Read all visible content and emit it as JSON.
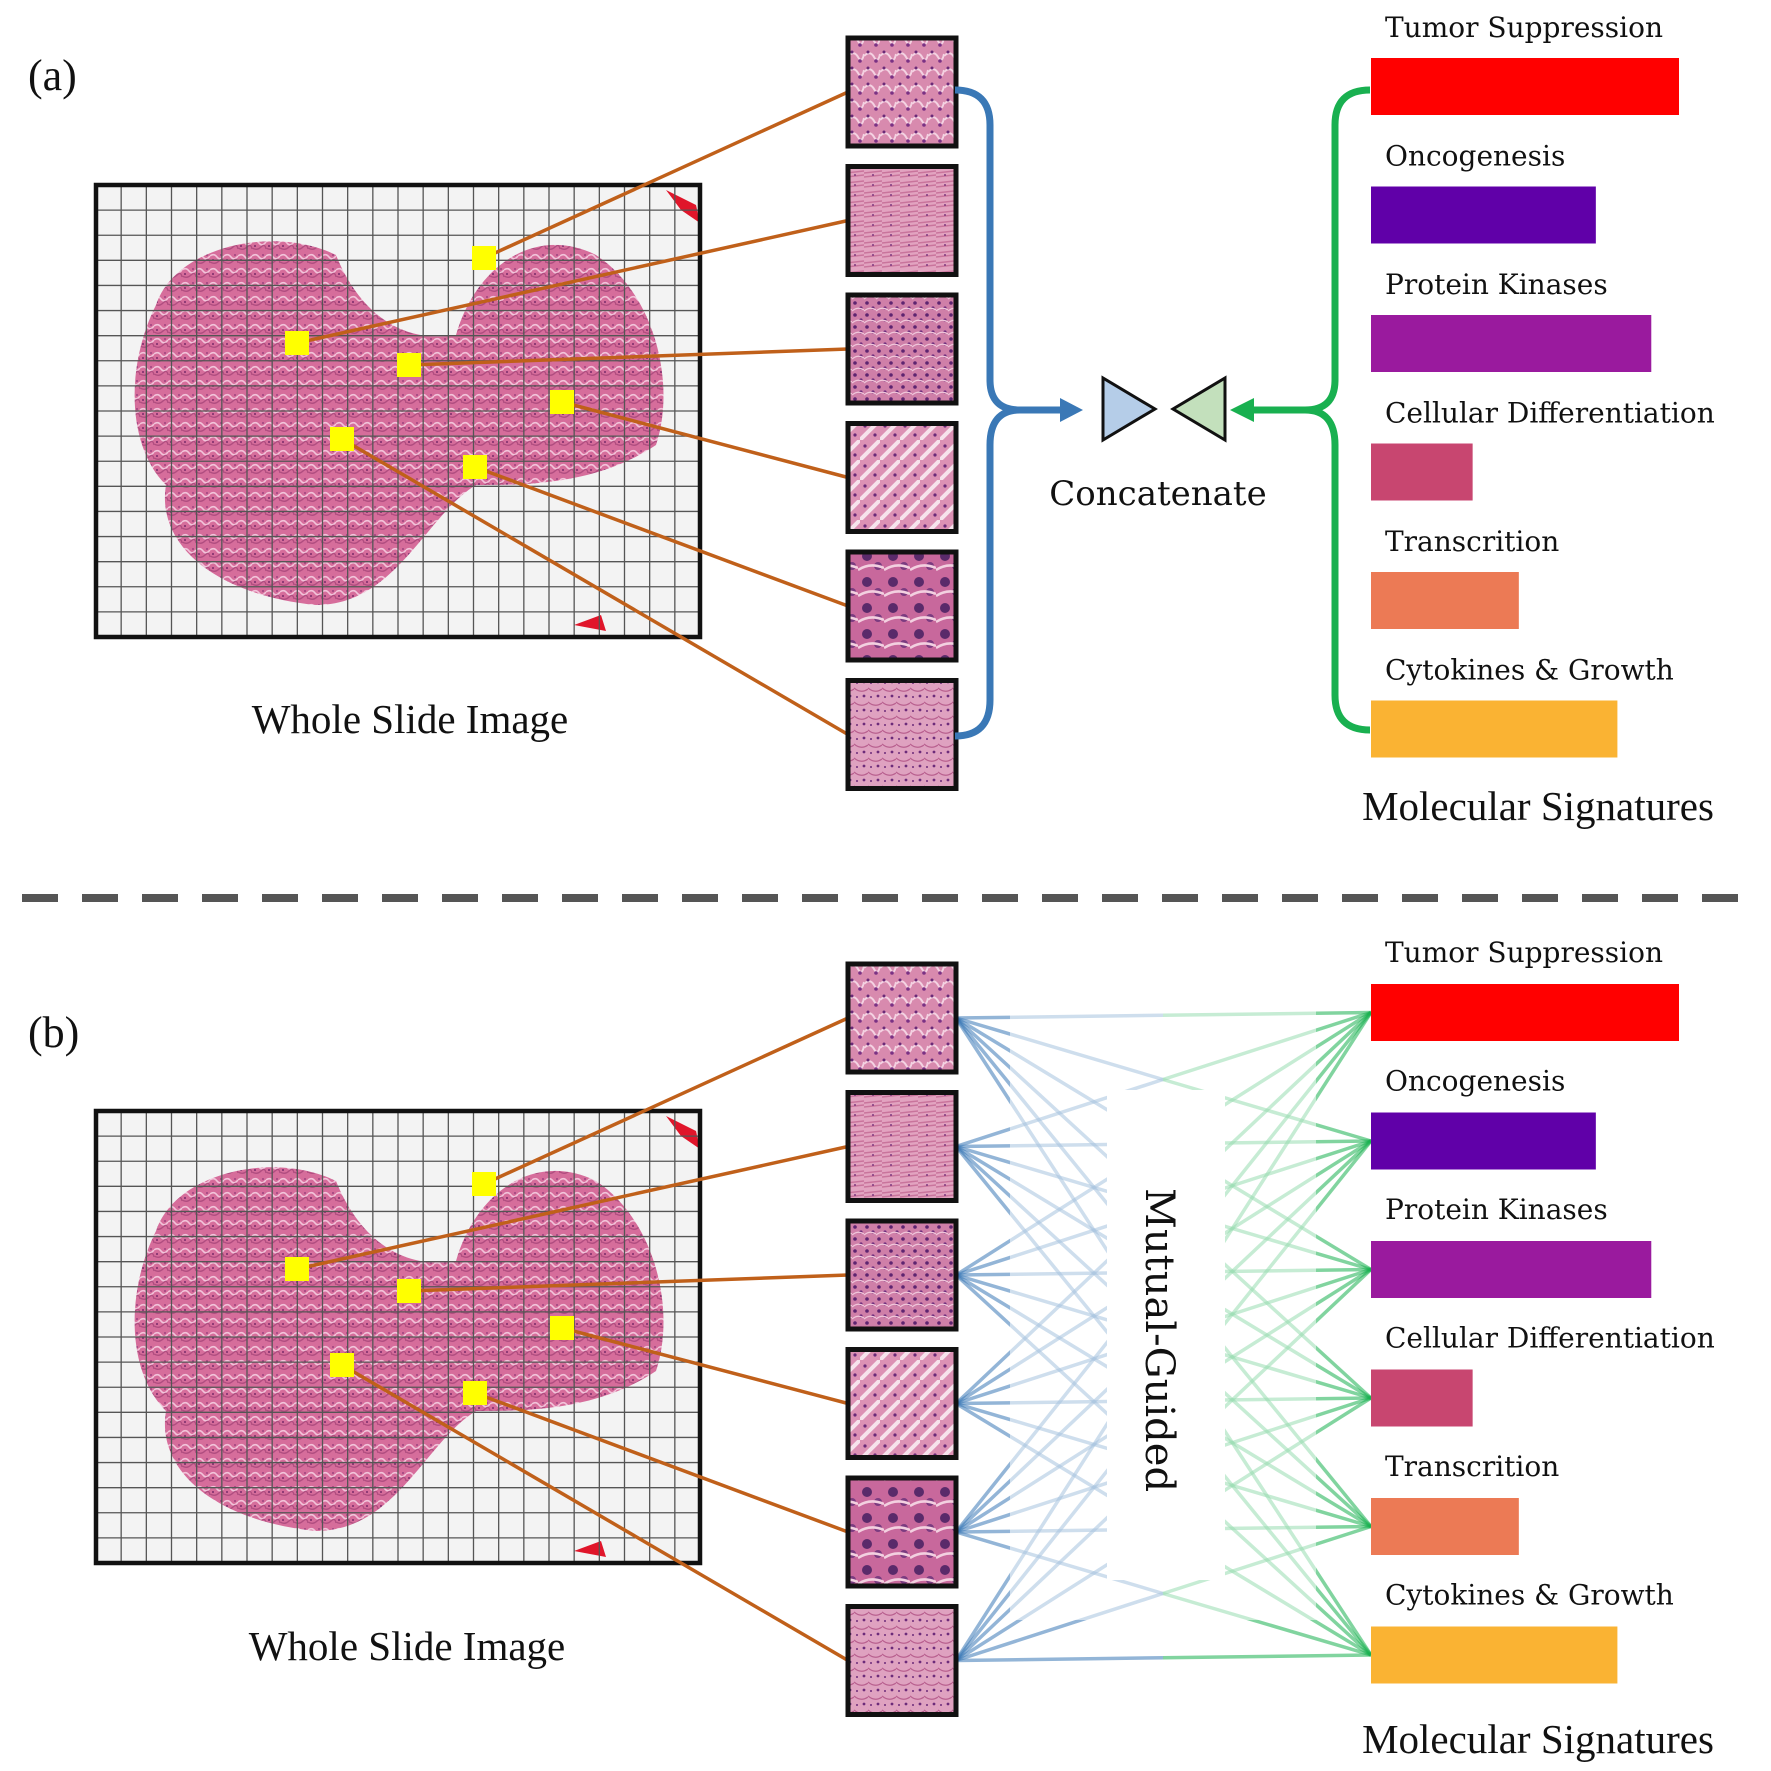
{
  "panels": [
    {
      "letter": "(a)",
      "wsi_caption": "Whole Slide Image",
      "fusion_label": "Concatenate",
      "signatures_caption": "Molecular Signatures",
      "signatures": [
        {
          "label": "Tumor Suppression",
          "relative_length": 1.0,
          "color": "#ff0000"
        },
        {
          "label": "Oncogenesis",
          "relative_length": 0.73,
          "color": "#6000a8"
        },
        {
          "label": "Protein Kinases",
          "relative_length": 0.91,
          "color": "#9a1a9e"
        },
        {
          "label": "Cellular Differentiation",
          "relative_length": 0.33,
          "color": "#c84670"
        },
        {
          "label": "Transcrition",
          "relative_length": 0.48,
          "color": "#ec7a55"
        },
        {
          "label": "Cytokines & Growth",
          "relative_length": 0.8,
          "color": "#fab333"
        }
      ]
    },
    {
      "letter": "(b)",
      "wsi_caption": "Whole Slide Image",
      "fusion_label": "Mutual-Guided",
      "signatures_caption": "Molecular Signatures",
      "signatures": [
        {
          "label": "Tumor Suppression",
          "relative_length": 1.0,
          "color": "#ff0000"
        },
        {
          "label": "Oncogenesis",
          "relative_length": 0.73,
          "color": "#6000a8"
        },
        {
          "label": "Protein Kinases",
          "relative_length": 0.91,
          "color": "#9a1a9e"
        },
        {
          "label": "Cellular Differentiation",
          "relative_length": 0.33,
          "color": "#c84670"
        },
        {
          "label": "Transcrition",
          "relative_length": 0.48,
          "color": "#ec7a55"
        },
        {
          "label": "Cytokines & Growth",
          "relative_length": 0.8,
          "color": "#fab333"
        }
      ]
    }
  ],
  "colors": {
    "patch_marker": "#ffff00",
    "patch_link": "#c0601a",
    "histology_bracket": "#3a78b6",
    "genomic_bracket": "#19b050",
    "histology_token": "#b5cde8",
    "genomic_token": "#c3e0bc",
    "tissue": "#d4709a",
    "divider": "#555555"
  }
}
